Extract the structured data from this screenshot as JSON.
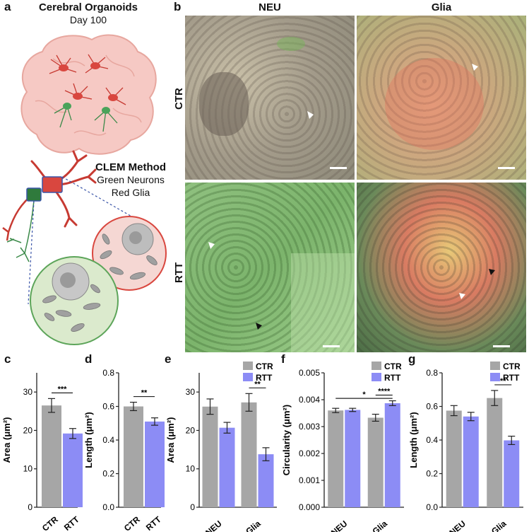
{
  "panel_labels": {
    "a": "a",
    "b": "b",
    "c": "c",
    "d": "d",
    "e": "e",
    "f": "f",
    "g": "g"
  },
  "panel_a": {
    "title": "Cerebral Organoids",
    "subtitle": "Day 100",
    "method_title": "CLEM Method",
    "method_line1": "Green Neurons",
    "method_line2": "Red Glia"
  },
  "panel_b": {
    "col_neu": "NEU",
    "col_glia": "Glia",
    "row_ctr": "CTR",
    "row_rtt": "RTT"
  },
  "colors": {
    "ctr": "#a6a6a6",
    "rtt": "#8c8cf5",
    "neuron_green": "#4aa35a",
    "glia_red": "#d9473f"
  },
  "chart_data": [
    {
      "id": "c",
      "type": "bar",
      "categories": [
        "CTR",
        "RTT"
      ],
      "values": [
        26.5,
        19.2
      ],
      "errors": [
        1.8,
        1.3
      ],
      "ylabel": "Area (μm²)",
      "ylim": [
        0,
        35
      ],
      "yticks": [
        "0",
        "10",
        "20",
        "30"
      ],
      "significance": [
        {
          "from": 0,
          "to": 1,
          "label": "***"
        }
      ],
      "colors": [
        "#a6a6a6",
        "#8c8cf5"
      ]
    },
    {
      "id": "d",
      "type": "bar",
      "categories": [
        "CTR",
        "RTT"
      ],
      "values": [
        0.6,
        0.51
      ],
      "errors": [
        0.025,
        0.022
      ],
      "ylabel": "Length (μm²)",
      "ylim": [
        0,
        0.8
      ],
      "yticks": [
        "0.0",
        "0.2",
        "0.4",
        "0.6",
        "0.8"
      ],
      "significance": [
        {
          "from": 0,
          "to": 1,
          "label": "**"
        }
      ],
      "colors": [
        "#a6a6a6",
        "#8c8cf5"
      ]
    },
    {
      "id": "e",
      "type": "bar",
      "categories": [
        "NEU",
        "Glia"
      ],
      "series": [
        {
          "name": "CTR",
          "values": [
            26.2,
            27.3
          ],
          "errors": [
            2.0,
            2.3
          ]
        },
        {
          "name": "RTT",
          "values": [
            20.7,
            13.8
          ],
          "errors": [
            1.4,
            1.7
          ]
        }
      ],
      "ylabel": "Area (μm²)",
      "ylim": [
        0,
        35
      ],
      "yticks": [
        "0",
        "10",
        "20",
        "30"
      ],
      "significance": [
        {
          "group": 1,
          "label": "**"
        }
      ],
      "legend": "top-right"
    },
    {
      "id": "f",
      "type": "bar",
      "categories": [
        "NEU",
        "Glia"
      ],
      "series": [
        {
          "name": "CTR",
          "values": [
            0.0036,
            0.00333
          ],
          "errors": [
            8e-05,
            0.00013
          ]
        },
        {
          "name": "RTT",
          "values": [
            0.00362,
            0.00387
          ],
          "errors": [
            6e-05,
            9e-05
          ]
        }
      ],
      "ylabel": "Circularity (μm²)",
      "ylim": [
        0,
        0.005
      ],
      "yticks": [
        "0.000",
        "0.001",
        "0.002",
        "0.003",
        "0.004",
        "0.005"
      ],
      "significance": [
        {
          "label": "****",
          "type": "glia"
        },
        {
          "label": "*",
          "type": "cross"
        }
      ],
      "legend": "top-right"
    },
    {
      "id": "g",
      "type": "bar",
      "categories": [
        "NEU",
        "Glia"
      ],
      "series": [
        {
          "name": "CTR",
          "values": [
            0.575,
            0.65
          ],
          "errors": [
            0.03,
            0.045
          ]
        },
        {
          "name": "RTT",
          "values": [
            0.54,
            0.398
          ],
          "errors": [
            0.025,
            0.025
          ]
        }
      ],
      "ylabel": "Length (μm²)",
      "ylim": [
        0,
        0.8
      ],
      "yticks": [
        "0.0",
        "0.2",
        "0.4",
        "0.6",
        "0.8"
      ],
      "significance": [
        {
          "group": 1,
          "label": "**"
        }
      ],
      "legend": "top-right"
    }
  ]
}
